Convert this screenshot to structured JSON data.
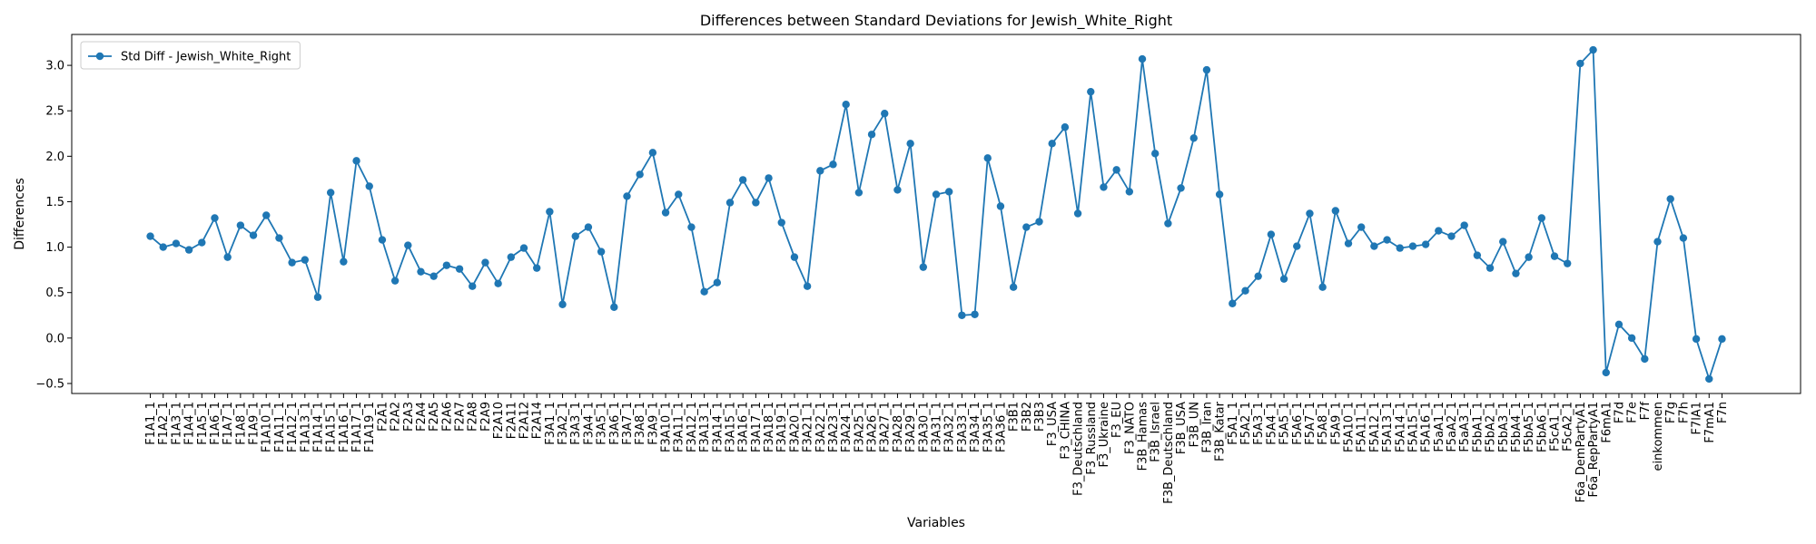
{
  "chart_data": {
    "type": "line",
    "title": "Differences between Standard Deviations for Jewish_White_Right",
    "x_label": "Variables",
    "y_label": "Differences",
    "legend": "upper left",
    "grid": false,
    "categories": [
      "F1A1_1",
      "F1A2_1",
      "F1A3_1",
      "F1A4_1",
      "F1A5_1",
      "F1A6_1",
      "F1A7_1",
      "F1A8_1",
      "F1A9_1",
      "F1A10_1",
      "F1A11_1",
      "F1A12_1",
      "F1A13_1",
      "F1A14_1",
      "F1A15_1",
      "F1A16_1",
      "F1A17_1",
      "F1A19_1",
      "F2A1",
      "F2A2",
      "F2A3",
      "F2A4",
      "F2A5",
      "F2A6",
      "F2A7",
      "F2A8",
      "F2A9",
      "F2A10",
      "F2A11",
      "F2A12",
      "F2A14",
      "F3A1_1",
      "F3A2_1",
      "F3A3_1",
      "F3A4_1",
      "F3A5_1",
      "F3A6_1",
      "F3A7_1",
      "F3A8_1",
      "F3A9_1",
      "F3A10_1",
      "F3A11_1",
      "F3A12_1",
      "F3A13_1",
      "F3A14_1",
      "F3A15_1",
      "F3A16_1",
      "F3A17_1",
      "F3A18_1",
      "F3A19_1",
      "F3A20_1",
      "F3A21_1",
      "F3A22_1",
      "F3A23_1",
      "F3A24_1",
      "F3A25_1",
      "F3A26_1",
      "F3A27_1",
      "F3A28_1",
      "F3A29_1",
      "F3A30_1",
      "F3A31_1",
      "F3A32_1",
      "F3A33_1",
      "F3A34_1",
      "F3A35_1",
      "F3A36_1",
      "F3B1",
      "F3B2",
      "F3B3",
      "F3_USA",
      "F3_CHINA",
      "F3_Deutschland",
      "F3_Russland",
      "F3_Ukraine",
      "F3_EU",
      "F3_NATO",
      "F3B_Hamas",
      "F3B_Israel",
      "F3B_Deutschland",
      "F3B_USA",
      "F3B_UN",
      "F3B_Iran",
      "F3B_Katar",
      "F5A1_1",
      "F5A2_1",
      "F5A3_1",
      "F5A4_1",
      "F5A5_1",
      "F5A6_1",
      "F5A7_1",
      "F5A8_1",
      "F5A9_1",
      "F5A10_1",
      "F5A11_1",
      "F5A12_1",
      "F5A13_1",
      "F5A14_1",
      "F5A15_1",
      "F5A16_1",
      "F5aA1_1",
      "F5aA2_1",
      "F5aA3_1",
      "F5bA1_1",
      "F5bA2_1",
      "F5bA3_1",
      "F5bA4_1",
      "F5bA5_1",
      "F5bA6_1",
      "F5cA1_1",
      "F5cA2_1",
      "F6a_DemPartyA1",
      "F6a_RepPartyA1",
      "F6mA1",
      "F7d",
      "F7e",
      "F7f",
      "einkommen",
      "F7g",
      "F7h",
      "F7lA1",
      "F7mA1",
      "F7n"
    ],
    "series": [
      {
        "name": "Std Diff - Jewish_White_Right",
        "color": "#1f77b4",
        "values": [
          1.12,
          1.0,
          1.04,
          0.97,
          1.05,
          1.32,
          0.89,
          1.24,
          1.13,
          1.35,
          1.1,
          0.83,
          0.86,
          0.45,
          1.6,
          0.84,
          1.95,
          1.67,
          1.08,
          0.63,
          1.02,
          0.73,
          0.68,
          0.8,
          0.76,
          0.57,
          0.83,
          0.6,
          0.89,
          0.99,
          0.77,
          1.39,
          0.37,
          1.12,
          1.22,
          0.95,
          0.34,
          1.56,
          1.8,
          2.04,
          1.38,
          1.58,
          1.22,
          0.51,
          0.61,
          1.49,
          1.74,
          1.49,
          1.76,
          1.27,
          0.89,
          0.57,
          1.84,
          1.91,
          2.57,
          1.6,
          2.24,
          2.47,
          1.63,
          2.14,
          0.78,
          1.58,
          1.61,
          0.25,
          0.26,
          1.98,
          1.45,
          0.56,
          1.22,
          1.28,
          2.14,
          2.32,
          1.37,
          2.71,
          1.66,
          1.85,
          1.61,
          3.07,
          2.03,
          1.26,
          1.65,
          2.2,
          2.95,
          1.58,
          0.38,
          0.52,
          0.68,
          1.14,
          0.65,
          1.01,
          1.37,
          0.56,
          1.4,
          1.04,
          1.22,
          1.01,
          1.08,
          0.99,
          1.01,
          1.03,
          1.18,
          1.12,
          1.24,
          0.91,
          0.77,
          1.06,
          0.71,
          0.89,
          1.32,
          0.9,
          0.82,
          3.02,
          3.17,
          -0.38,
          0.15,
          0.0,
          -0.23,
          1.06,
          1.53,
          1.1,
          -0.01,
          -0.45,
          -0.01
        ]
      }
    ],
    "ylim": [
      -0.61,
      3.34
    ],
    "yticks": [
      {
        "value": -0.5,
        "label": "−0.5"
      },
      {
        "value": 0,
        "label": "0.0"
      },
      {
        "value": 0.5,
        "label": "0.5"
      },
      {
        "value": 1,
        "label": "1.0"
      },
      {
        "value": 1.5,
        "label": "1.5"
      },
      {
        "value": 2,
        "label": "2.0"
      },
      {
        "value": 2.5,
        "label": "2.5"
      },
      {
        "value": 3,
        "label": "3.0"
      }
    ]
  }
}
